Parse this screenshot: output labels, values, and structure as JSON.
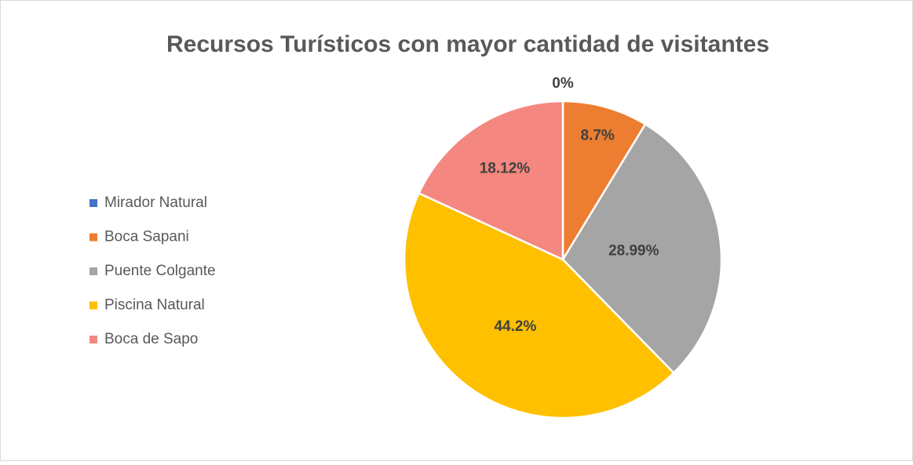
{
  "chart_data": {
    "type": "pie",
    "title": "Recursos Turísticos con mayor cantidad de visitantes",
    "categories": [
      "Mirador Natural",
      "Boca Sapani",
      "Puente Colgante",
      "Piscina Natural",
      "Boca de Sapo"
    ],
    "values": [
      0,
      8.7,
      28.99,
      44.2,
      18.12
    ],
    "value_labels": [
      "0%",
      "8.7%",
      "28.99%",
      "44.2%",
      "18.12%"
    ],
    "colors": [
      "#4472c4",
      "#ed7d31",
      "#a5a5a5",
      "#ffc000",
      "#f4877f"
    ],
    "legend": "left"
  }
}
